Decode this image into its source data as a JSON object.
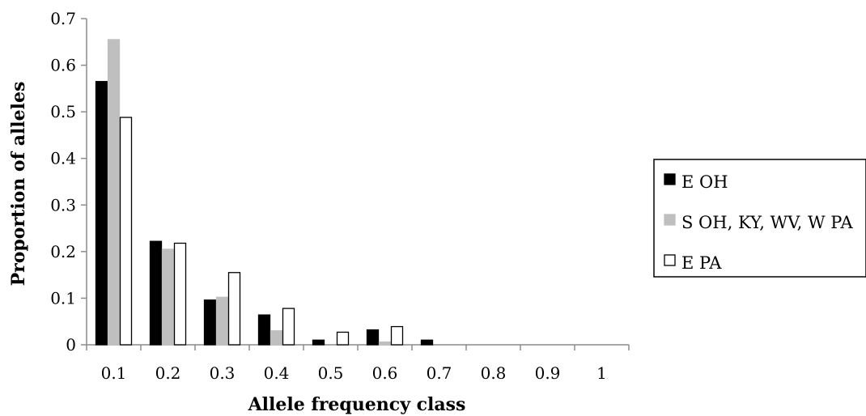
{
  "chart_data": {
    "type": "bar",
    "title": "",
    "xlabel": "Allele frequency class",
    "ylabel": "Proportion of alleles",
    "categories": [
      "0.1",
      "0.2",
      "0.3",
      "0.4",
      "0.5",
      "0.6",
      "0.7",
      "0.8",
      "0.9",
      "1"
    ],
    "yticks": [
      "0",
      "0.1",
      "0.2",
      "0.3",
      "0.4",
      "0.5",
      "0.6",
      "0.7"
    ],
    "ylim": [
      0,
      0.7
    ],
    "grid": false,
    "legend_position": "right",
    "series": [
      {
        "name": "E OH",
        "color": "#000000",
        "stroke": "#000000",
        "values": [
          0.565,
          0.222,
          0.096,
          0.064,
          0.01,
          0.032,
          0.01,
          0,
          0,
          0
        ]
      },
      {
        "name": "S OH, KY, WV, W PA",
        "color": "#bfbfbf",
        "stroke": "#bfbfbf",
        "values": [
          0.655,
          0.205,
          0.102,
          0.03,
          0,
          0.006,
          0,
          0,
          0,
          0
        ]
      },
      {
        "name": "E PA",
        "color": "#ffffff",
        "stroke": "#000000",
        "values": [
          0.488,
          0.218,
          0.155,
          0.078,
          0.027,
          0.039,
          0,
          0,
          0,
          0
        ]
      }
    ]
  }
}
